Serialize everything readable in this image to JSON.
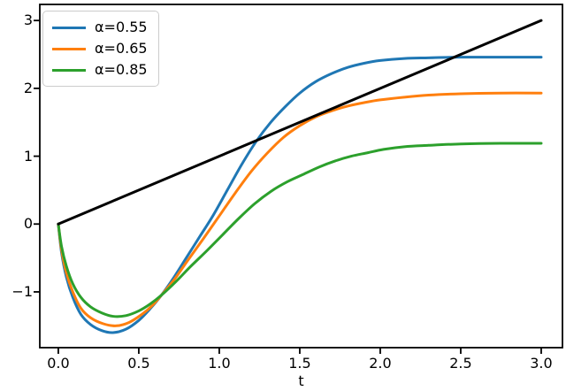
{
  "figure": {
    "background": "#ffffff",
    "frame_color": "#000000"
  },
  "chart_data": {
    "type": "line",
    "title": "",
    "xlabel": "t",
    "ylabel": "",
    "grid": false,
    "xlim": [
      -0.115,
      3.132
    ],
    "ylim": [
      -1.822,
      3.237
    ],
    "legend_position": "upper-left",
    "x_ticks": [
      {
        "value": 0.0,
        "label": "0.0"
      },
      {
        "value": 0.5,
        "label": "0.5"
      },
      {
        "value": 1.0,
        "label": "1.0"
      },
      {
        "value": 1.5,
        "label": "1.5"
      },
      {
        "value": 2.0,
        "label": "2.0"
      },
      {
        "value": 2.5,
        "label": "2.5"
      },
      {
        "value": 3.0,
        "label": "3.0"
      }
    ],
    "y_ticks": [
      {
        "value": 3,
        "label": "3"
      },
      {
        "value": 2,
        "label": "2"
      },
      {
        "value": 1,
        "label": "1"
      },
      {
        "value": 0,
        "label": "0"
      },
      {
        "value": -1,
        "label": "−1"
      }
    ],
    "series": [
      {
        "name": "α=0.55",
        "color": "#1f77b4",
        "in_legend": true,
        "linewidth": 3,
        "points": [
          [
            0,
            0
          ],
          [
            0.02,
            -0.42
          ],
          [
            0.05,
            -0.78
          ],
          [
            0.09,
            -1.08
          ],
          [
            0.14,
            -1.33
          ],
          [
            0.2,
            -1.48
          ],
          [
            0.27,
            -1.57
          ],
          [
            0.34,
            -1.6
          ],
          [
            0.42,
            -1.55
          ],
          [
            0.5,
            -1.42
          ],
          [
            0.57,
            -1.25
          ],
          [
            0.64,
            -1.05
          ],
          [
            0.72,
            -0.78
          ],
          [
            0.8,
            -0.48
          ],
          [
            0.88,
            -0.18
          ],
          [
            0.96,
            0.12
          ],
          [
            1.05,
            0.5
          ],
          [
            1.14,
            0.88
          ],
          [
            1.23,
            1.22
          ],
          [
            1.32,
            1.5
          ],
          [
            1.41,
            1.73
          ],
          [
            1.5,
            1.93
          ],
          [
            1.6,
            2.1
          ],
          [
            1.7,
            2.22
          ],
          [
            1.8,
            2.31
          ],
          [
            1.9,
            2.37
          ],
          [
            2.0,
            2.41
          ],
          [
            2.15,
            2.44
          ],
          [
            2.3,
            2.45
          ],
          [
            2.5,
            2.46
          ],
          [
            2.75,
            2.46
          ],
          [
            3.0,
            2.46
          ]
        ]
      },
      {
        "name": "α=0.65",
        "color": "#ff7f0e",
        "in_legend": true,
        "linewidth": 3,
        "points": [
          [
            0,
            0
          ],
          [
            0.02,
            -0.38
          ],
          [
            0.05,
            -0.72
          ],
          [
            0.09,
            -1.0
          ],
          [
            0.14,
            -1.24
          ],
          [
            0.2,
            -1.38
          ],
          [
            0.28,
            -1.47
          ],
          [
            0.36,
            -1.5
          ],
          [
            0.44,
            -1.45
          ],
          [
            0.52,
            -1.33
          ],
          [
            0.58,
            -1.21
          ],
          [
            0.64,
            -1.05
          ],
          [
            0.72,
            -0.82
          ],
          [
            0.8,
            -0.55
          ],
          [
            0.9,
            -0.22
          ],
          [
            1.0,
            0.12
          ],
          [
            1.1,
            0.46
          ],
          [
            1.2,
            0.78
          ],
          [
            1.3,
            1.05
          ],
          [
            1.4,
            1.28
          ],
          [
            1.5,
            1.45
          ],
          [
            1.6,
            1.58
          ],
          [
            1.7,
            1.67
          ],
          [
            1.8,
            1.74
          ],
          [
            1.9,
            1.79
          ],
          [
            2.0,
            1.83
          ],
          [
            2.15,
            1.87
          ],
          [
            2.3,
            1.9
          ],
          [
            2.5,
            1.92
          ],
          [
            2.75,
            1.93
          ],
          [
            3.0,
            1.93
          ]
        ]
      },
      {
        "name": "α=0.85",
        "color": "#2ca02c",
        "in_legend": true,
        "linewidth": 3,
        "points": [
          [
            0,
            0
          ],
          [
            0.02,
            -0.33
          ],
          [
            0.05,
            -0.62
          ],
          [
            0.09,
            -0.88
          ],
          [
            0.14,
            -1.08
          ],
          [
            0.2,
            -1.22
          ],
          [
            0.27,
            -1.31
          ],
          [
            0.34,
            -1.36
          ],
          [
            0.42,
            -1.35
          ],
          [
            0.5,
            -1.28
          ],
          [
            0.57,
            -1.18
          ],
          [
            0.64,
            -1.05
          ],
          [
            0.73,
            -0.85
          ],
          [
            0.82,
            -0.63
          ],
          [
            0.92,
            -0.4
          ],
          [
            1.02,
            -0.16
          ],
          [
            1.12,
            0.08
          ],
          [
            1.22,
            0.3
          ],
          [
            1.32,
            0.48
          ],
          [
            1.42,
            0.62
          ],
          [
            1.52,
            0.73
          ],
          [
            1.62,
            0.84
          ],
          [
            1.72,
            0.93
          ],
          [
            1.82,
            1.0
          ],
          [
            1.92,
            1.05
          ],
          [
            2.02,
            1.1
          ],
          [
            2.15,
            1.14
          ],
          [
            2.3,
            1.16
          ],
          [
            2.5,
            1.18
          ],
          [
            2.75,
            1.19
          ],
          [
            3.0,
            1.19
          ]
        ]
      },
      {
        "name": "reference-line",
        "color": "#000000",
        "in_legend": false,
        "linewidth": 3,
        "points": [
          [
            0,
            0
          ],
          [
            3,
            3
          ]
        ]
      }
    ]
  }
}
